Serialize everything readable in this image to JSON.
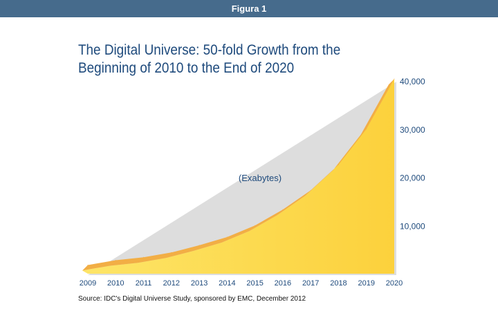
{
  "header": {
    "label": "Figura 1"
  },
  "chart_data": {
    "type": "area",
    "title": "The Digital Universe: 50-fold Growth from the Beginning of 2010 to the End of 2020",
    "annotation": "(Exabytes)",
    "xlabel": "",
    "ylabel": "Exabytes",
    "x": [
      "2009",
      "2010",
      "2011",
      "2012",
      "2013",
      "2014",
      "2015",
      "2016",
      "2017",
      "2018",
      "2019",
      "2020"
    ],
    "values": [
      1800,
      2800,
      3400,
      4400,
      5900,
      7600,
      10000,
      13300,
      17300,
      22600,
      30000,
      40400
    ],
    "yticks": [
      10000,
      20000,
      30000,
      40000
    ],
    "ytick_labels": [
      "10,000",
      "20,000",
      "30,000",
      "40,000"
    ],
    "ylim": [
      0,
      40000
    ],
    "grid": false,
    "y_axis_position": "right",
    "colors": {
      "fill": "#fcd84a",
      "band": "#f2ae45",
      "text": "#1e4a7c"
    },
    "source": "Source: IDC's Digital Universe Study, sponsored by EMC, December 2012"
  }
}
